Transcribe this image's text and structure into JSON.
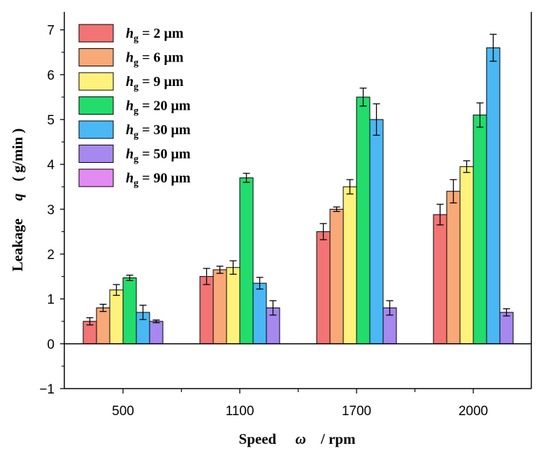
{
  "chart_data": {
    "type": "bar",
    "categories": [
      "500",
      "1100",
      "1700",
      "2000"
    ],
    "xlabel": "Speed ω / rpm",
    "xlabel_parts": {
      "word": "Speed",
      "symbol": "ω",
      "unit": "/  rpm"
    },
    "ylabel": "Leakage q (g/min)",
    "ylabel_parts": {
      "word": "Leakage",
      "symbol": "q",
      "unit": "( g/min )"
    },
    "ylim": [
      -1,
      7.4
    ],
    "yticks": [
      "−1",
      "0",
      "1",
      "2",
      "3",
      "4",
      "5",
      "6",
      "7"
    ],
    "ytick_values": [
      -1,
      0,
      1,
      2,
      3,
      4,
      5,
      6,
      7
    ],
    "legend_position": "top-left",
    "series": [
      {
        "name": "hg = 2 μm",
        "label_sub": "g",
        "label_main": "h",
        "label_rest": " = 2 μm",
        "color": "#f27474",
        "values": [
          0.5,
          1.5,
          2.5,
          2.88
        ],
        "errors": [
          0.08,
          0.18,
          0.18,
          0.23
        ]
      },
      {
        "name": "hg = 6 μm",
        "label_sub": "g",
        "label_main": "h",
        "label_rest": " = 6 μm",
        "color": "#f9a877",
        "values": [
          0.8,
          1.65,
          3.0,
          3.4
        ],
        "errors": [
          0.08,
          0.08,
          0.05,
          0.26
        ]
      },
      {
        "name": "hg = 9 μm",
        "label_sub": "g",
        "label_main": "h",
        "label_rest": " = 9 μm",
        "color": "#fef27c",
        "values": [
          1.2,
          1.7,
          3.5,
          3.95
        ],
        "errors": [
          0.12,
          0.15,
          0.16,
          0.13
        ]
      },
      {
        "name": "hg = 20 μm",
        "label_sub": "g",
        "label_main": "h",
        "label_rest": " = 20 μm",
        "color": "#22dc6c",
        "values": [
          1.47,
          3.7,
          5.5,
          5.1
        ],
        "errors": [
          0.06,
          0.1,
          0.2,
          0.27
        ]
      },
      {
        "name": "hg = 30 μm",
        "label_sub": "g",
        "label_main": "h",
        "label_rest": " = 30 μm",
        "color": "#4ab8f4",
        "values": [
          0.7,
          1.35,
          5.0,
          6.6
        ],
        "errors": [
          0.16,
          0.13,
          0.35,
          0.3
        ]
      },
      {
        "name": "hg = 50 μm",
        "label_sub": "g",
        "label_main": "h",
        "label_rest": " = 50 μm",
        "color": "#a688ee",
        "values": [
          0.5,
          0.8,
          0.8,
          0.7
        ],
        "errors": [
          0.03,
          0.16,
          0.16,
          0.08
        ]
      },
      {
        "name": "hg = 90 μm",
        "label_sub": "g",
        "label_main": "h",
        "label_rest": " = 90 μm",
        "color": "#e38af4",
        "values": [
          null,
          null,
          null,
          null
        ],
        "errors": [
          null,
          null,
          null,
          null
        ]
      }
    ]
  }
}
